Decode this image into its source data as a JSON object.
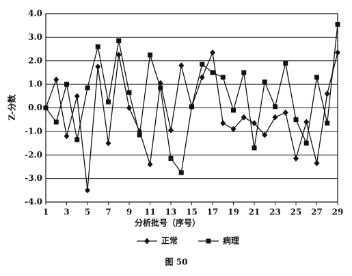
{
  "chart_data": {
    "type": "line",
    "title": "图 50",
    "x_label": "分析批号（序号）",
    "y_label": "Z-分数",
    "x": [
      1,
      2,
      3,
      4,
      5,
      6,
      7,
      8,
      9,
      10,
      11,
      12,
      13,
      14,
      15,
      16,
      17,
      18,
      19,
      20,
      21,
      22,
      23,
      24,
      25,
      26,
      27,
      28,
      29
    ],
    "series": [
      {
        "name": "正常",
        "color": "#111111",
        "marker": "diamond",
        "values": [
          0.0,
          1.2,
          -1.2,
          0.5,
          -3.5,
          1.75,
          -1.5,
          2.25,
          0.0,
          -1.0,
          -2.4,
          1.05,
          -0.95,
          1.8,
          0.05,
          1.3,
          2.35,
          -0.65,
          -0.9,
          -0.4,
          -0.65,
          -1.15,
          -0.4,
          -0.2,
          -2.15,
          -0.6,
          -2.35,
          0.6,
          2.35
        ]
      },
      {
        "name": "病理",
        "color": "#111111",
        "marker": "square",
        "values": [
          0.0,
          -0.6,
          1.0,
          -1.35,
          0.85,
          2.6,
          0.25,
          2.85,
          0.65,
          -1.15,
          2.25,
          0.85,
          -2.15,
          -2.75,
          0.05,
          1.85,
          1.5,
          1.3,
          -0.1,
          1.5,
          -1.7,
          1.1,
          0.05,
          1.9,
          -0.5,
          -1.5,
          1.3,
          -0.65,
          3.55
        ]
      }
    ],
    "xlim": [
      1,
      29
    ],
    "xticks": [
      1,
      3,
      5,
      7,
      9,
      11,
      13,
      15,
      17,
      19,
      21,
      23,
      25,
      27,
      29
    ],
    "ylim": [
      -4,
      4
    ],
    "yticks": [
      {
        "value": -4,
        "label": "-4.0"
      },
      {
        "value": -3,
        "label": "-3.0"
      },
      {
        "value": -2,
        "label": "-2.0"
      },
      {
        "value": -1,
        "label": "-1.0"
      },
      {
        "value": 0,
        "label": "0.0"
      },
      {
        "value": 1,
        "label": "1.0"
      },
      {
        "value": 2,
        "label": "2.0"
      },
      {
        "value": 3,
        "label": "3.0"
      },
      {
        "value": 4,
        "label": "4.0"
      }
    ],
    "grid": true,
    "legend": "bottom"
  }
}
